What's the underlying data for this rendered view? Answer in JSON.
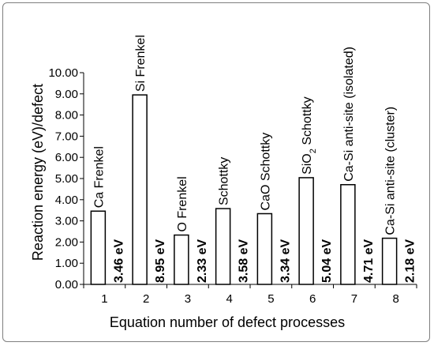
{
  "chart_data": {
    "type": "bar",
    "title": "",
    "xlabel": "Equation number of defect processes",
    "ylabel": "Reaction energy (eV)/defect",
    "ylim": [
      0,
      10
    ],
    "yticks": [
      "0.00",
      "1.00",
      "2.00",
      "3.00",
      "4.00",
      "5.00",
      "6.00",
      "7.00",
      "8.00",
      "9.00",
      "10.00"
    ],
    "categories": [
      "1",
      "2",
      "3",
      "4",
      "5",
      "6",
      "7",
      "8"
    ],
    "values": [
      3.46,
      8.95,
      2.33,
      3.58,
      3.34,
      5.04,
      4.71,
      2.18
    ],
    "value_labels": [
      "3.46 eV",
      "8.95 eV",
      "2.33 eV",
      "3.58 eV",
      "3.34 eV",
      "5.04 eV",
      "4.71 eV",
      "2.18 eV"
    ],
    "bar_annotations": [
      {
        "text": "Ca Frenkel"
      },
      {
        "text": "Si Frenkel"
      },
      {
        "text": "O Frenkel"
      },
      {
        "text": "Schottky"
      },
      {
        "text": "CaO Schottky"
      },
      {
        "text": "SiO",
        "sub": "2",
        "rest": " Schottky"
      },
      {
        "text": "Ca-Si anti-site (isolated)"
      },
      {
        "text": "Ca-Si anti-site (cluster)"
      }
    ],
    "grid": false,
    "legend": "none",
    "bar_fill": "#ffffff",
    "bar_stroke": "#000000"
  }
}
